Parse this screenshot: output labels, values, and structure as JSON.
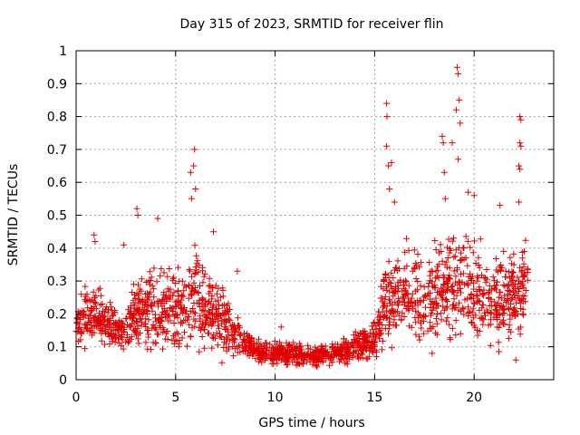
{
  "chart_data": {
    "type": "scatter",
    "title": "Day 315 of 2023, SRMTID for receiver flin",
    "xlabel": "GPS time / hours",
    "ylabel": "SRMTID / TECUs",
    "xlim": [
      0,
      24
    ],
    "ylim": [
      0,
      1
    ],
    "x_ticks": [
      0,
      5,
      10,
      15,
      20
    ],
    "y_ticks": [
      0,
      0.1,
      0.2,
      0.3,
      0.4,
      0.5,
      0.6,
      0.7,
      0.8,
      0.9,
      1
    ],
    "grid": true,
    "marker": "+",
    "series": [
      {
        "name": "SRMTID",
        "color": "#e00000",
        "profile_x": [
          0.0,
          0.5,
          1.0,
          1.5,
          2.0,
          2.5,
          3.0,
          3.5,
          4.0,
          4.5,
          5.0,
          5.5,
          6.0,
          6.5,
          7.0,
          7.5,
          8.0,
          8.5,
          9.0,
          9.5,
          10.0,
          10.5,
          11.0,
          11.5,
          12.0,
          12.5,
          13.0,
          13.5,
          14.0,
          14.5,
          15.0,
          15.5,
          16.0,
          16.5,
          17.0,
          17.5,
          18.0,
          18.5,
          19.0,
          19.5,
          20.0,
          20.5,
          21.0,
          21.5,
          22.0,
          22.5,
          22.7
        ],
        "profile_median": [
          0.17,
          0.2,
          0.19,
          0.17,
          0.16,
          0.16,
          0.2,
          0.22,
          0.21,
          0.22,
          0.21,
          0.24,
          0.27,
          0.23,
          0.2,
          0.17,
          0.13,
          0.11,
          0.09,
          0.08,
          0.08,
          0.08,
          0.08,
          0.075,
          0.07,
          0.075,
          0.08,
          0.09,
          0.1,
          0.11,
          0.12,
          0.22,
          0.27,
          0.27,
          0.26,
          0.24,
          0.25,
          0.27,
          0.3,
          0.31,
          0.28,
          0.25,
          0.24,
          0.25,
          0.26,
          0.3,
          0.34
        ],
        "profile_spread": [
          0.05,
          0.06,
          0.06,
          0.05,
          0.05,
          0.05,
          0.07,
          0.08,
          0.08,
          0.08,
          0.08,
          0.09,
          0.11,
          0.09,
          0.08,
          0.06,
          0.04,
          0.03,
          0.025,
          0.025,
          0.025,
          0.025,
          0.025,
          0.02,
          0.02,
          0.02,
          0.025,
          0.025,
          0.03,
          0.035,
          0.035,
          0.08,
          0.09,
          0.09,
          0.09,
          0.09,
          0.1,
          0.1,
          0.11,
          0.11,
          0.1,
          0.09,
          0.09,
          0.09,
          0.09,
          0.08,
          0.06
        ],
        "peaks": [
          {
            "x": 0.9,
            "y": 0.44
          },
          {
            "x": 0.95,
            "y": 0.42
          },
          {
            "x": 2.4,
            "y": 0.41
          },
          {
            "x": 3.05,
            "y": 0.52
          },
          {
            "x": 3.1,
            "y": 0.5
          },
          {
            "x": 4.1,
            "y": 0.49
          },
          {
            "x": 5.75,
            "y": 0.63
          },
          {
            "x": 5.9,
            "y": 0.65
          },
          {
            "x": 5.95,
            "y": 0.7
          },
          {
            "x": 5.8,
            "y": 0.55
          },
          {
            "x": 6.0,
            "y": 0.58
          },
          {
            "x": 6.9,
            "y": 0.45
          },
          {
            "x": 8.1,
            "y": 0.33
          },
          {
            "x": 10.3,
            "y": 0.16
          },
          {
            "x": 15.6,
            "y": 0.84
          },
          {
            "x": 15.62,
            "y": 0.8
          },
          {
            "x": 15.6,
            "y": 0.71
          },
          {
            "x": 15.7,
            "y": 0.65
          },
          {
            "x": 15.75,
            "y": 0.58
          },
          {
            "x": 15.85,
            "y": 0.66
          },
          {
            "x": 16.0,
            "y": 0.54
          },
          {
            "x": 18.4,
            "y": 0.74
          },
          {
            "x": 18.45,
            "y": 0.72
          },
          {
            "x": 18.5,
            "y": 0.63
          },
          {
            "x": 18.55,
            "y": 0.55
          },
          {
            "x": 18.9,
            "y": 0.72
          },
          {
            "x": 19.15,
            "y": 0.95
          },
          {
            "x": 19.2,
            "y": 0.93
          },
          {
            "x": 19.25,
            "y": 0.85
          },
          {
            "x": 19.1,
            "y": 0.82
          },
          {
            "x": 19.3,
            "y": 0.78
          },
          {
            "x": 19.2,
            "y": 0.67
          },
          {
            "x": 19.7,
            "y": 0.57
          },
          {
            "x": 20.0,
            "y": 0.56
          },
          {
            "x": 21.3,
            "y": 0.53
          },
          {
            "x": 22.3,
            "y": 0.8
          },
          {
            "x": 22.35,
            "y": 0.79
          },
          {
            "x": 22.3,
            "y": 0.72
          },
          {
            "x": 22.35,
            "y": 0.71
          },
          {
            "x": 22.25,
            "y": 0.65
          },
          {
            "x": 22.3,
            "y": 0.64
          },
          {
            "x": 22.25,
            "y": 0.54
          },
          {
            "x": 22.1,
            "y": 0.06
          }
        ]
      }
    ]
  }
}
